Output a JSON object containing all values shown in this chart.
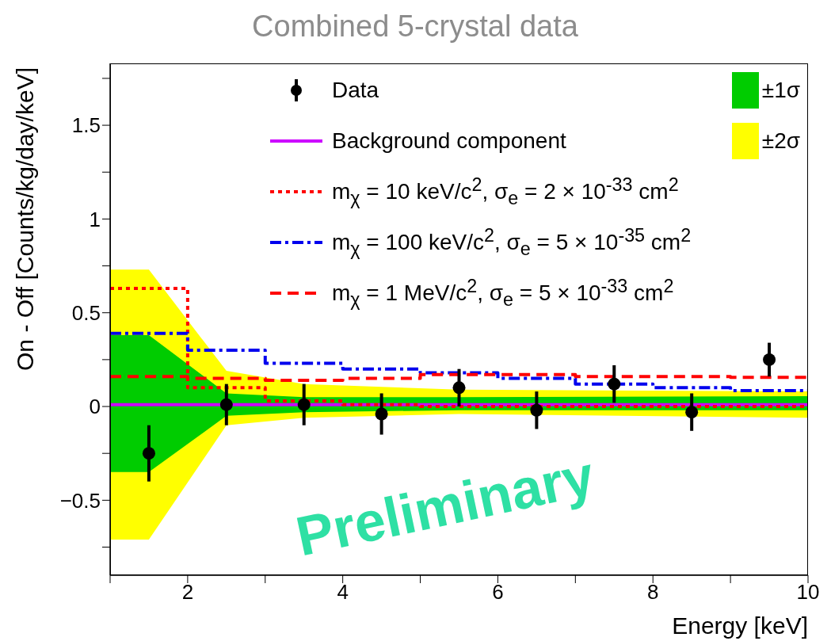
{
  "chart_data": {
    "type": "scatter",
    "title": "Combined 5-crystal data",
    "xlabel": "Energy [keV]",
    "ylabel": "On - Off [Counts/kg/day/keV]",
    "xlim": [
      1,
      10
    ],
    "xticks": [
      {
        "value": 1,
        "label": null
      },
      2,
      {
        "value": 3,
        "label": null
      },
      4,
      {
        "value": 5,
        "label": null
      },
      6,
      {
        "value": 7,
        "label": null
      },
      8,
      {
        "value": 9,
        "label": null
      },
      10
    ],
    "ylim": [
      -0.9,
      1.83
    ],
    "yticks": [
      {
        "value": -0.75,
        "label": null
      },
      {
        "value": -0.5,
        "label": "−0.5"
      },
      {
        "value": -0.25,
        "label": null
      },
      0,
      {
        "value": 0.25,
        "label": null
      },
      0.5,
      {
        "value": 0.75,
        "label": null
      },
      1,
      {
        "value": 1.25,
        "label": null
      },
      1.5,
      {
        "value": 1.75,
        "label": null
      }
    ],
    "grid": false,
    "legend": "top",
    "annotations": [
      "Preliminary"
    ],
    "series": [
      {
        "name": "Data",
        "marker": "circle",
        "color": "#000000",
        "x": [
          1.5,
          2.5,
          3.5,
          4.5,
          5.5,
          6.5,
          7.5,
          8.5,
          9.5
        ],
        "values": [
          -0.25,
          0.01,
          0.01,
          -0.04,
          0.1,
          -0.02,
          0.12,
          -0.03,
          0.25
        ],
        "errors": [
          0.15,
          0.11,
          0.11,
          0.11,
          0.1,
          0.1,
          0.1,
          0.1,
          0.09
        ]
      },
      {
        "name": "Background component",
        "type": "line",
        "color": "#cc00ff",
        "line_style": "solid",
        "x": [
          1,
          10
        ],
        "values": [
          0.01,
          0.01
        ]
      },
      {
        "name": "m$_{χ}$ = 10 keV/c$^{2}$, σ$_{e}$ = 2 × 10$^{-33}$ cm$^{2}$",
        "type": "step",
        "color": "#ff0000",
        "line_style": "dotted",
        "x": [
          1,
          2,
          3,
          4,
          5,
          6,
          7,
          8,
          9,
          10
        ],
        "values": [
          0.63,
          0.1,
          0.03,
          0.01,
          0,
          0,
          0,
          0,
          0,
          0
        ]
      },
      {
        "name": "m$_{χ}$ = 100 keV/c$^{2}$, σ$_{e}$ = 5 × 10$^{-35}$ cm$^{2}$",
        "type": "step",
        "color": "#0000ee",
        "line_style": "dashdot",
        "x": [
          1,
          2,
          3,
          4,
          5,
          6,
          7,
          8,
          9,
          10
        ],
        "values": [
          0.39,
          0.3,
          0.23,
          0.2,
          0.18,
          0.15,
          0.12,
          0.1,
          0.085,
          0.085
        ]
      },
      {
        "name": "m$_{χ}$ = 1 MeV/c$^{2}$, σ$_{e}$ = 5 × 10$^{-33}$ cm$^{2}$",
        "type": "step",
        "color": "#ff0000",
        "line_style": "dashed",
        "x": [
          1,
          2,
          3,
          4,
          5,
          6,
          7,
          8,
          9,
          10
        ],
        "values": [
          0.16,
          0.15,
          0.14,
          0.15,
          0.17,
          0.17,
          0.16,
          0.16,
          0.155,
          0.155
        ]
      },
      {
        "name": "±2σ",
        "type": "area",
        "color": "#ffff00",
        "x": [
          1,
          1.5,
          2.5,
          3.5,
          5.5,
          10
        ],
        "values": [
          null,
          null,
          null,
          null,
          null,
          null
        ],
        "lower": [
          -0.71,
          -0.71,
          -0.1,
          -0.06,
          -0.04,
          -0.06
        ],
        "upper": [
          0.73,
          0.73,
          0.19,
          0.12,
          0.09,
          0.08
        ]
      },
      {
        "name": "±1σ",
        "type": "area",
        "color": "#00cc00",
        "x": [
          1,
          1.5,
          2.5,
          3.5,
          5.5,
          10
        ],
        "values": [
          null,
          null,
          null,
          null,
          null,
          null
        ],
        "lower": [
          -0.35,
          -0.35,
          -0.05,
          -0.03,
          -0.02,
          -0.02
        ],
        "upper": [
          0.38,
          0.38,
          0.07,
          0.05,
          0.05,
          0.055
        ]
      }
    ]
  }
}
